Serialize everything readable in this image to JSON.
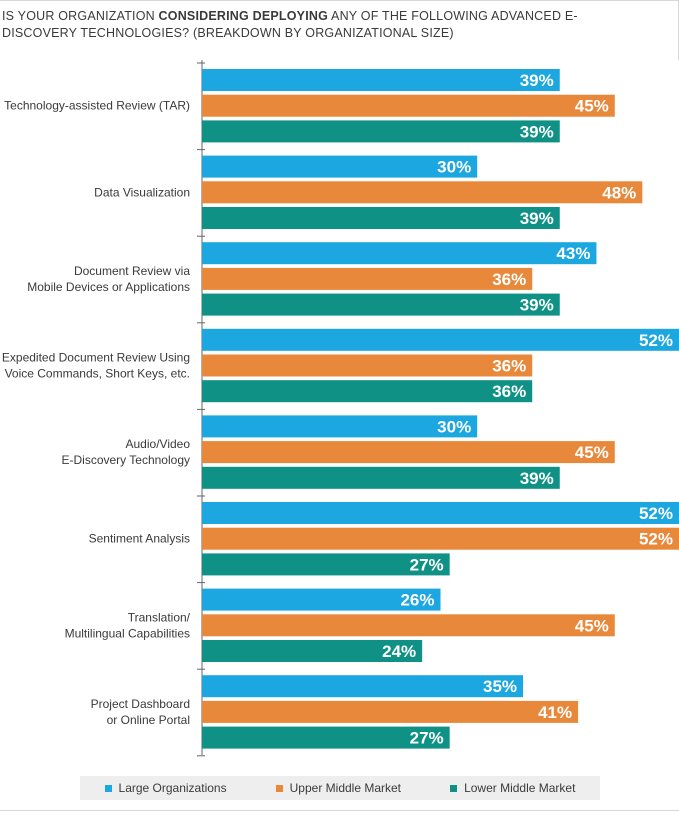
{
  "chart_data": {
    "type": "bar",
    "orientation": "horizontal",
    "title_parts": [
      {
        "text": "IS YOUR ORGANIZATION ",
        "bold": false
      },
      {
        "text": "CONSIDERING DEPLOYING",
        "bold": true
      },
      {
        "text": " ANY OF THE FOLLOWING ADVANCED E-DISCOVERY TECHNOLOGIES? (BREAKDOWN BY ORGANIZATIONAL SIZE)",
        "bold": false
      }
    ],
    "categories": [
      [
        "Technology-assisted Review (TAR)"
      ],
      [
        "Data Visualization"
      ],
      [
        "Document Review via",
        "Mobile Devices or Applications"
      ],
      [
        "Expedited Document Review Using",
        "Voice Commands, Short Keys, etc."
      ],
      [
        "Audio/Video",
        "E-Discovery Technology"
      ],
      [
        "Sentiment Analysis"
      ],
      [
        "Translation/",
        "Multilingual Capabilities"
      ],
      [
        "Project Dashboard",
        "or Online Portal"
      ]
    ],
    "series": [
      {
        "name": "Large Organizations",
        "color": "#1ca7e0",
        "values": [
          39,
          30,
          43,
          52,
          30,
          52,
          26,
          35
        ]
      },
      {
        "name": "Upper Middle Market",
        "color": "#e8883a",
        "values": [
          45,
          48,
          36,
          36,
          45,
          52,
          45,
          41
        ]
      },
      {
        "name": "Lower Middle Market",
        "color": "#0f9185",
        "values": [
          39,
          39,
          39,
          36,
          39,
          27,
          24,
          27
        ]
      }
    ],
    "value_suffix": "%",
    "xlim": [
      0,
      52
    ],
    "legend_position": "bottom"
  }
}
